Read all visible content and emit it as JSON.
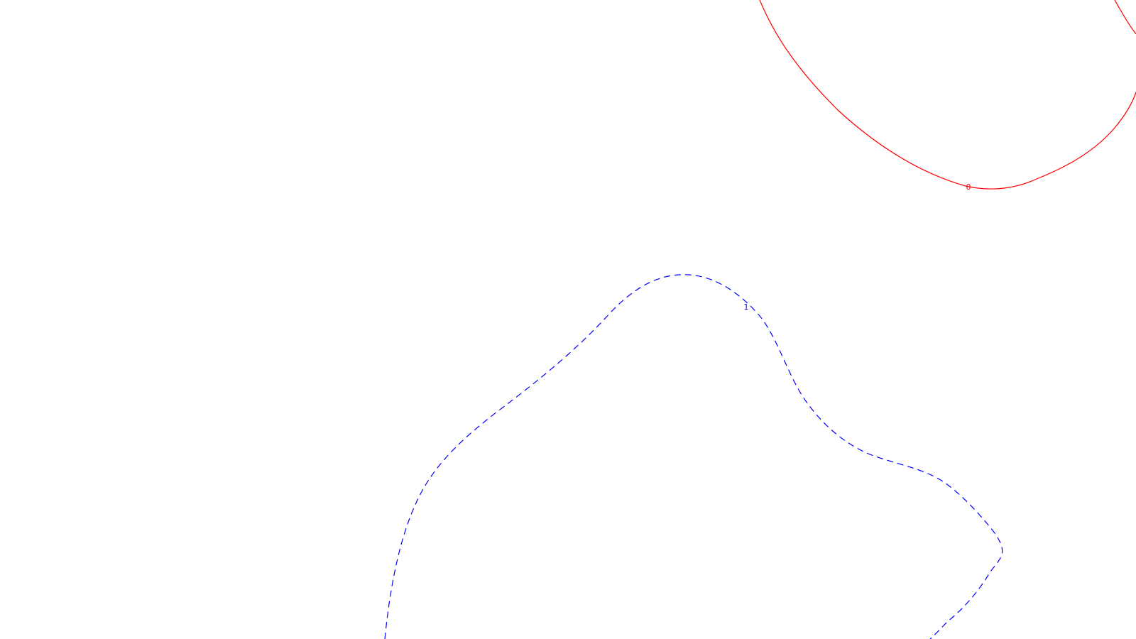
{
  "chart_data": {
    "type": "contour",
    "title": "",
    "xlabel": "",
    "ylabel": "",
    "grid": false,
    "axes_visible": false,
    "contours": [
      {
        "level": "0",
        "color": "#ff0000",
        "style": "solid",
        "label_text": "0"
      },
      {
        "level": "1",
        "color": "#0000ff",
        "style": "dashed",
        "label_text": "1"
      }
    ]
  }
}
